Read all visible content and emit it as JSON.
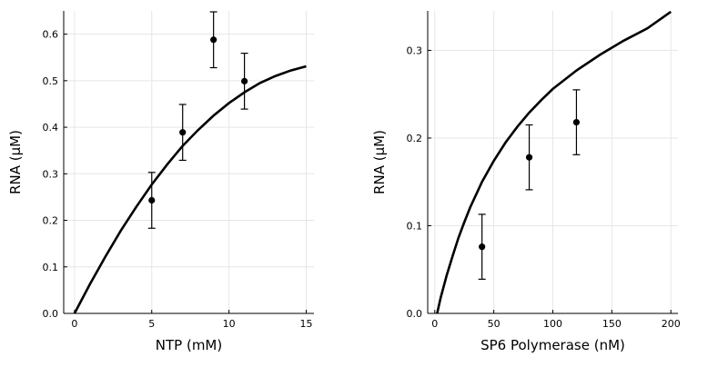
{
  "chart_data": [
    {
      "type": "scatter",
      "xlabel": "NTP (mM)",
      "ylabel": "RNA (µM)",
      "xlim": [
        -0.7,
        15.5
      ],
      "ylim": [
        0,
        0.65
      ],
      "xticks": [
        0,
        5,
        10,
        15
      ],
      "xtick_labels": [
        "0",
        "5",
        "10",
        "15"
      ],
      "yticks": [
        0,
        0.1,
        0.2,
        0.3,
        0.4,
        0.5,
        0.6
      ],
      "ytick_labels": [
        "0.0",
        "0.1",
        "0.2",
        "0.3",
        "0.4",
        "0.5",
        "0.6"
      ],
      "grid": true,
      "legend": "none",
      "points": [
        {
          "x": 5,
          "y": 0.243,
          "err": 0.06
        },
        {
          "x": 7,
          "y": 0.389,
          "err": 0.06
        },
        {
          "x": 9,
          "y": 0.588,
          "err": 0.06
        },
        {
          "x": 11,
          "y": 0.499,
          "err": 0.06
        }
      ],
      "fit_curve": {
        "x": [
          0,
          1,
          2,
          3,
          4,
          5,
          6,
          7,
          8,
          9,
          10,
          11,
          12,
          13,
          14,
          15
        ],
        "y": [
          0.0,
          0.063,
          0.122,
          0.178,
          0.229,
          0.277,
          0.32,
          0.36,
          0.394,
          0.425,
          0.452,
          0.475,
          0.495,
          0.51,
          0.522,
          0.531
        ]
      }
    },
    {
      "type": "scatter",
      "xlabel": "SP6 Polymerase (nM)",
      "ylabel": "RNA (µM)",
      "xlim": [
        -6,
        206
      ],
      "ylim": [
        0,
        0.345
      ],
      "xticks": [
        0,
        50,
        100,
        150,
        200
      ],
      "xtick_labels": [
        "0",
        "50",
        "100",
        "150",
        "200"
      ],
      "yticks": [
        0,
        0.1,
        0.2,
        0.3
      ],
      "ytick_labels": [
        "0.0",
        "0.1",
        "0.2",
        "0.3"
      ],
      "grid": true,
      "legend": "none",
      "points": [
        {
          "x": 40,
          "y": 0.076,
          "err": 0.037
        },
        {
          "x": 80,
          "y": 0.178,
          "err": 0.037
        },
        {
          "x": 120,
          "y": 0.218,
          "err": 0.037
        }
      ],
      "fit_curve": {
        "x": [
          2,
          5,
          10,
          15,
          20,
          25,
          30,
          40,
          50,
          60,
          70,
          80,
          90,
          100,
          120,
          140,
          160,
          180,
          200
        ],
        "y": [
          0.0,
          0.018,
          0.043,
          0.065,
          0.086,
          0.104,
          0.121,
          0.15,
          0.174,
          0.195,
          0.213,
          0.229,
          0.243,
          0.256,
          0.277,
          0.295,
          0.311,
          0.325,
          0.344
        ]
      }
    }
  ]
}
